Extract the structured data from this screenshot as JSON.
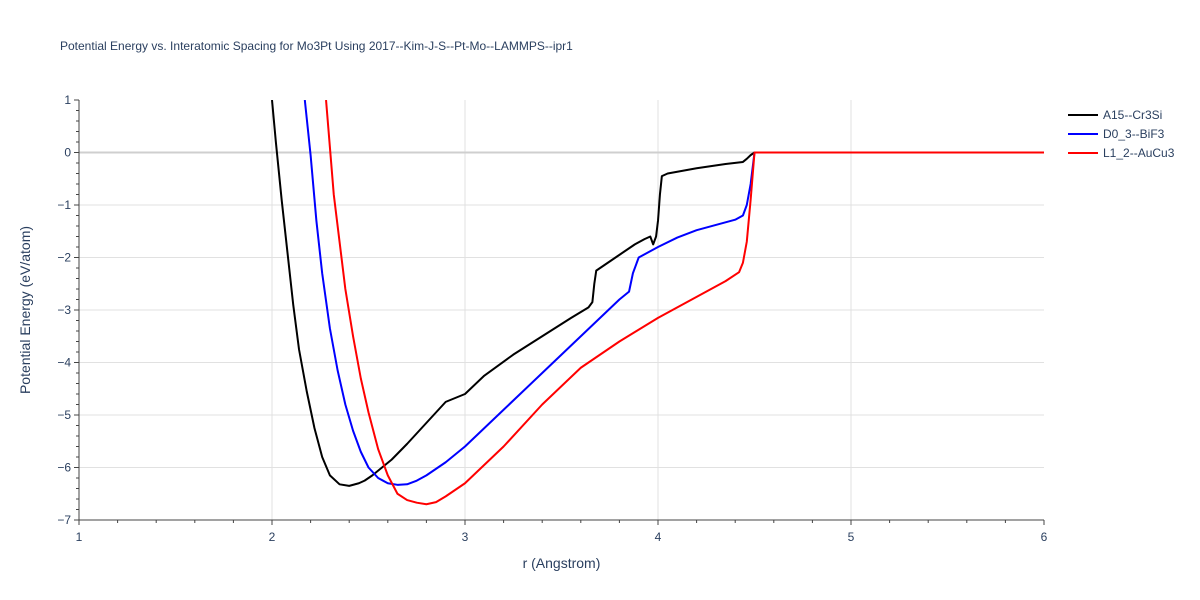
{
  "chart_data": {
    "type": "line",
    "title": "Potential Energy vs. Interatomic Spacing for Mo3Pt Using 2017--Kim-J-S--Pt-Mo--LAMMPS--ipr1",
    "xlabel": "r (Angstrom)",
    "ylabel": "Potential Energy (eV/atom)",
    "xlim": [
      1,
      6
    ],
    "ylim": [
      -7,
      1
    ],
    "xticks": [
      1,
      2,
      3,
      4,
      5,
      6
    ],
    "yticks": [
      1,
      0,
      -1,
      -2,
      -3,
      -4,
      -5,
      -6,
      -7
    ],
    "xtick_labels": [
      "1",
      "2",
      "3",
      "4",
      "5",
      "6"
    ],
    "ytick_labels": [
      "1",
      "0",
      "−1",
      "−2",
      "−3",
      "−4",
      "−5",
      "−6",
      "−7"
    ],
    "grid": true,
    "legend_position": "top-right",
    "series": [
      {
        "name": "A15--Cr3Si",
        "color": "#000000",
        "x": [
          2.0,
          2.02,
          2.05,
          2.08,
          2.11,
          2.14,
          2.18,
          2.22,
          2.26,
          2.3,
          2.35,
          2.4,
          2.45,
          2.48,
          2.52,
          2.57,
          2.62,
          2.7,
          2.8,
          2.9,
          3.0,
          3.1,
          3.25,
          3.4,
          3.55,
          3.64,
          3.66,
          3.67,
          3.68,
          3.72,
          3.8,
          3.88,
          3.93,
          3.96,
          3.975,
          3.99,
          4.0,
          4.01,
          4.02,
          4.05,
          4.2,
          4.35,
          4.44,
          4.46,
          4.48,
          4.5,
          4.6,
          5.0,
          5.5,
          6.0
        ],
        "y": [
          1.0,
          0.2,
          -0.9,
          -1.9,
          -2.9,
          -3.75,
          -4.55,
          -5.25,
          -5.8,
          -6.15,
          -6.32,
          -6.35,
          -6.3,
          -6.25,
          -6.15,
          -6.0,
          -5.85,
          -5.55,
          -5.15,
          -4.75,
          -4.6,
          -4.25,
          -3.85,
          -3.5,
          -3.15,
          -2.95,
          -2.85,
          -2.5,
          -2.25,
          -2.15,
          -1.95,
          -1.75,
          -1.65,
          -1.6,
          -1.75,
          -1.6,
          -1.3,
          -0.8,
          -0.45,
          -0.4,
          -0.3,
          -0.22,
          -0.18,
          -0.12,
          -0.05,
          0.0,
          0.0,
          0.0,
          0.0,
          0.0
        ]
      },
      {
        "name": "D0_3--BiF3",
        "color": "#0000ff",
        "x": [
          2.17,
          2.2,
          2.23,
          2.26,
          2.3,
          2.34,
          2.38,
          2.42,
          2.46,
          2.5,
          2.55,
          2.6,
          2.65,
          2.7,
          2.75,
          2.8,
          2.9,
          3.0,
          3.2,
          3.4,
          3.6,
          3.8,
          3.85,
          3.87,
          3.9,
          4.0,
          4.1,
          4.2,
          4.3,
          4.4,
          4.44,
          4.46,
          4.48,
          4.5,
          4.6,
          5.0,
          5.5,
          6.0
        ],
        "y": [
          1.0,
          -0.05,
          -1.3,
          -2.3,
          -3.35,
          -4.15,
          -4.8,
          -5.3,
          -5.7,
          -6.0,
          -6.2,
          -6.3,
          -6.33,
          -6.32,
          -6.25,
          -6.15,
          -5.9,
          -5.6,
          -4.9,
          -4.2,
          -3.5,
          -2.8,
          -2.65,
          -2.3,
          -2.0,
          -1.8,
          -1.62,
          -1.48,
          -1.38,
          -1.28,
          -1.2,
          -1.0,
          -0.6,
          0.0,
          0.0,
          0.0,
          0.0,
          0.0
        ]
      },
      {
        "name": "L1_2--AuCu3",
        "color": "#ff0000",
        "x": [
          2.28,
          2.3,
          2.32,
          2.35,
          2.38,
          2.42,
          2.46,
          2.5,
          2.55,
          2.6,
          2.65,
          2.7,
          2.75,
          2.8,
          2.85,
          2.9,
          3.0,
          3.1,
          3.2,
          3.4,
          3.6,
          3.8,
          4.0,
          4.2,
          4.35,
          4.42,
          4.44,
          4.46,
          4.48,
          4.5,
          4.6,
          5.0,
          5.5,
          6.0
        ],
        "y": [
          1.0,
          0.1,
          -0.8,
          -1.7,
          -2.6,
          -3.5,
          -4.3,
          -4.95,
          -5.65,
          -6.15,
          -6.5,
          -6.62,
          -6.67,
          -6.7,
          -6.66,
          -6.55,
          -6.3,
          -5.95,
          -5.6,
          -4.8,
          -4.1,
          -3.6,
          -3.15,
          -2.75,
          -2.45,
          -2.28,
          -2.1,
          -1.7,
          -0.9,
          0.0,
          0.0,
          0.0,
          0.0,
          0.0
        ]
      }
    ]
  }
}
